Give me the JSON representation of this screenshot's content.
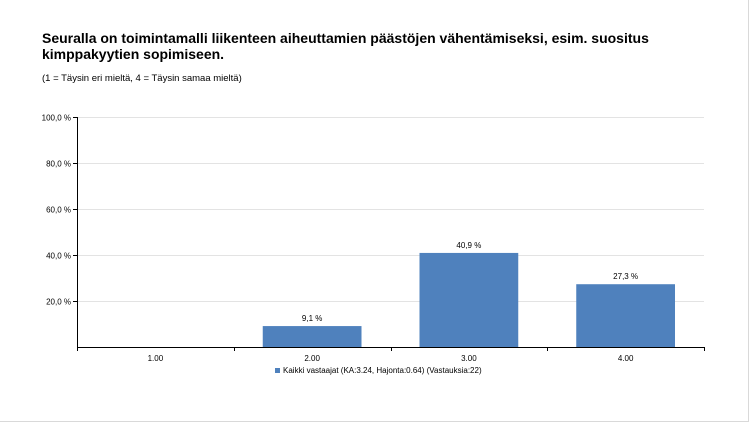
{
  "page": {
    "title": "Seuralla on toimintamalli liikenteen aiheuttamien päästöjen vähentämiseksi, esim. suositus kimppakyytien sopimiseen.",
    "subtitle": "(1 = Täysin eri mieltä, 4 = Täysin samaa mieltä)"
  },
  "chart_data": {
    "type": "bar",
    "title": "Seuralla on toimintamalli liikenteen aiheuttamien päästöjen vähentämiseksi, esim. suositus kimppakyytien sopimiseen.",
    "subtitle": "(1 = Täysin eri mieltä, 4 = Täysin samaa mieltä)",
    "xlabel": "",
    "ylabel": "",
    "ylim": [
      0,
      100
    ],
    "yticks": [
      20,
      40,
      60,
      80,
      100
    ],
    "ytick_labels": [
      "20,0 %",
      "40,0 %",
      "60,0 %",
      "80,0 %",
      "100,0 %"
    ],
    "categories": [
      "1.00",
      "2.00",
      "3.00",
      "4.00"
    ],
    "series": [
      {
        "name": "Kaikki vastaajat (KA:3.24, Hajonta:0.64) (Vastauksia:22)",
        "values": [
          0,
          9.1,
          40.9,
          27.3
        ],
        "value_labels": [
          null,
          "9,1 %",
          "40,9 %",
          "27,3 %"
        ],
        "color": "#4f81bd"
      }
    ],
    "grid": true,
    "legend": "bottom"
  }
}
